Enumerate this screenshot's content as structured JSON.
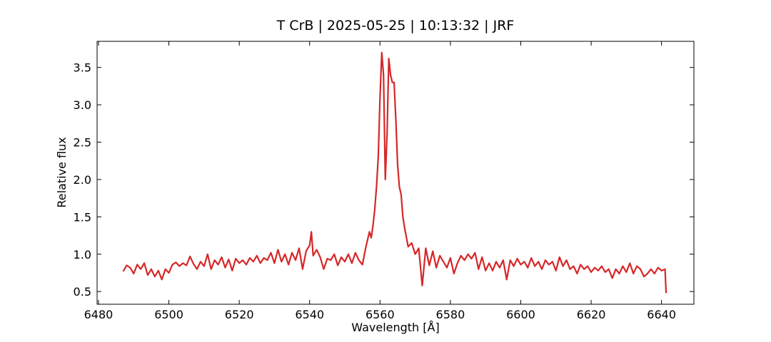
{
  "chart_data": {
    "type": "line",
    "title": "T CrB | 2025-05-25 | 10:13:32 | JRF",
    "x_label": "Wavelength [Å]",
    "y_label": "Relative flux",
    "xlim": [
      6479.6,
      6649.2
    ],
    "ylim": [
      0.33,
      3.85
    ],
    "xticks": [
      6480,
      6500,
      6520,
      6540,
      6560,
      6580,
      6600,
      6620,
      6640
    ],
    "yticks": [
      0.5,
      {
        "value": 1.0,
        "label": "1.0"
      },
      1.5,
      {
        "value": 2.0,
        "label": "2.0"
      },
      2.5,
      {
        "value": 3.0,
        "label": "3.0"
      },
      3.5
    ],
    "x": [
      6487,
      6488,
      6489,
      6490,
      6491,
      6492,
      6493,
      6494,
      6495,
      6496,
      6497,
      6498,
      6499,
      6500,
      6501,
      6502,
      6503,
      6504,
      6505,
      6506,
      6507,
      6508,
      6509,
      6510,
      6511,
      6512,
      6513,
      6514,
      6515,
      6516,
      6517,
      6518,
      6519,
      6520,
      6521,
      6522,
      6523,
      6524,
      6525,
      6526,
      6527,
      6528,
      6529,
      6530,
      6531,
      6532,
      6533,
      6534,
      6535,
      6536,
      6537,
      6538,
      6539,
      6540,
      6540.5,
      6541,
      6542,
      6543,
      6544,
      6545,
      6546,
      6547,
      6548,
      6549,
      6550,
      6551,
      6552,
      6553,
      6554,
      6555,
      6556,
      6557,
      6557.5,
      6558,
      6558.5,
      6559,
      6559.5,
      6560,
      6560.5,
      6561,
      6561.5,
      6562,
      6562.5,
      6563,
      6563.5,
      6564,
      6564.5,
      6565,
      6565.5,
      6566,
      6566.5,
      6567,
      6568,
      6569,
      6570,
      6571,
      6572,
      6573,
      6574,
      6575,
      6576,
      6577,
      6578,
      6579,
      6580,
      6581,
      6582,
      6583,
      6584,
      6585,
      6586,
      6587,
      6588,
      6589,
      6590,
      6591,
      6592,
      6593,
      6594,
      6595,
      6596,
      6597,
      6598,
      6599,
      6600,
      6601,
      6602,
      6603,
      6604,
      6605,
      6606,
      6607,
      6608,
      6609,
      6610,
      6611,
      6612,
      6613,
      6614,
      6615,
      6616,
      6617,
      6618,
      6619,
      6620,
      6621,
      6622,
      6623,
      6624,
      6625,
      6626,
      6627,
      6628,
      6629,
      6630,
      6631,
      6632,
      6633,
      6634,
      6635,
      6636,
      6637,
      6638,
      6639,
      6640,
      6641,
      6641.3
    ],
    "series": [
      {
        "name": "T CrB",
        "color": "#d62728",
        "values": [
          0.77,
          0.85,
          0.82,
          0.74,
          0.86,
          0.8,
          0.88,
          0.72,
          0.8,
          0.7,
          0.78,
          0.66,
          0.8,
          0.75,
          0.86,
          0.89,
          0.84,
          0.88,
          0.85,
          0.97,
          0.87,
          0.8,
          0.9,
          0.84,
          1.0,
          0.8,
          0.92,
          0.86,
          0.96,
          0.82,
          0.93,
          0.78,
          0.94,
          0.88,
          0.92,
          0.86,
          0.95,
          0.9,
          0.98,
          0.88,
          0.95,
          0.92,
          1.02,
          0.88,
          1.06,
          0.9,
          1.0,
          0.86,
          1.02,
          0.92,
          1.08,
          0.8,
          1.04,
          1.12,
          1.3,
          0.98,
          1.06,
          0.96,
          0.8,
          0.94,
          0.92,
          1.0,
          0.85,
          0.96,
          0.9,
          1.0,
          0.88,
          1.02,
          0.92,
          0.86,
          1.1,
          1.3,
          1.22,
          1.38,
          1.6,
          1.9,
          2.3,
          3.1,
          3.7,
          3.4,
          2.0,
          2.6,
          3.62,
          3.4,
          3.3,
          3.3,
          2.8,
          2.2,
          1.9,
          1.8,
          1.5,
          1.35,
          1.1,
          1.15,
          1.0,
          1.08,
          0.58,
          1.08,
          0.85,
          1.04,
          0.82,
          0.98,
          0.9,
          0.82,
          0.95,
          0.74,
          0.88,
          0.98,
          0.92,
          1.0,
          0.94,
          1.02,
          0.8,
          0.96,
          0.78,
          0.88,
          0.78,
          0.9,
          0.82,
          0.92,
          0.66,
          0.92,
          0.84,
          0.94,
          0.86,
          0.9,
          0.82,
          0.95,
          0.84,
          0.9,
          0.8,
          0.92,
          0.86,
          0.9,
          0.78,
          0.96,
          0.84,
          0.92,
          0.8,
          0.84,
          0.74,
          0.86,
          0.8,
          0.84,
          0.76,
          0.82,
          0.78,
          0.84,
          0.76,
          0.8,
          0.68,
          0.8,
          0.74,
          0.84,
          0.76,
          0.88,
          0.74,
          0.84,
          0.8,
          0.7,
          0.74,
          0.8,
          0.74,
          0.82,
          0.78,
          0.8,
          0.48
        ]
      }
    ]
  }
}
